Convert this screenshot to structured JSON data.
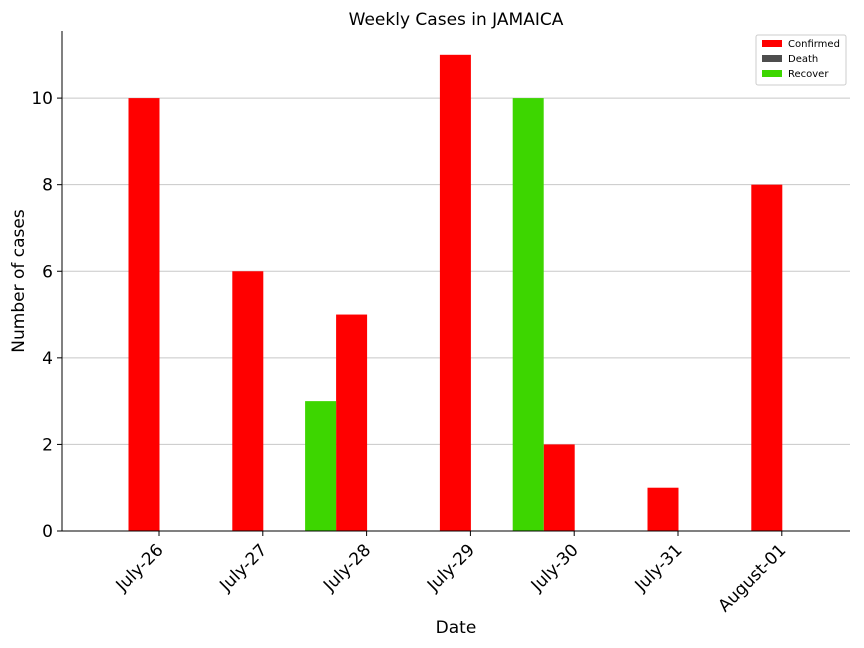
{
  "chart_data": {
    "type": "bar",
    "title": "Weekly Cases in JAMAICA",
    "xlabel": "Date",
    "ylabel": "Number of cases",
    "categories": [
      "July-26",
      "July-27",
      "July-28",
      "July-29",
      "July-30",
      "July-31",
      "August-01"
    ],
    "series": [
      {
        "name": "Confirmed",
        "color": "#ff0000",
        "values": [
          10,
          6,
          5,
          11,
          2,
          1,
          8
        ]
      },
      {
        "name": "Death",
        "color": "#4d4d4d",
        "values": [
          0,
          0,
          0,
          0,
          0,
          0,
          0
        ]
      },
      {
        "name": "Recover",
        "color": "#3dd600",
        "values": [
          0,
          0,
          3,
          0,
          10,
          0,
          0
        ]
      }
    ],
    "ylim": [
      0,
      11.55
    ],
    "yticks": [
      0,
      2,
      4,
      6,
      8,
      10
    ],
    "grid": "horizontal",
    "legend_position": "top-right"
  }
}
